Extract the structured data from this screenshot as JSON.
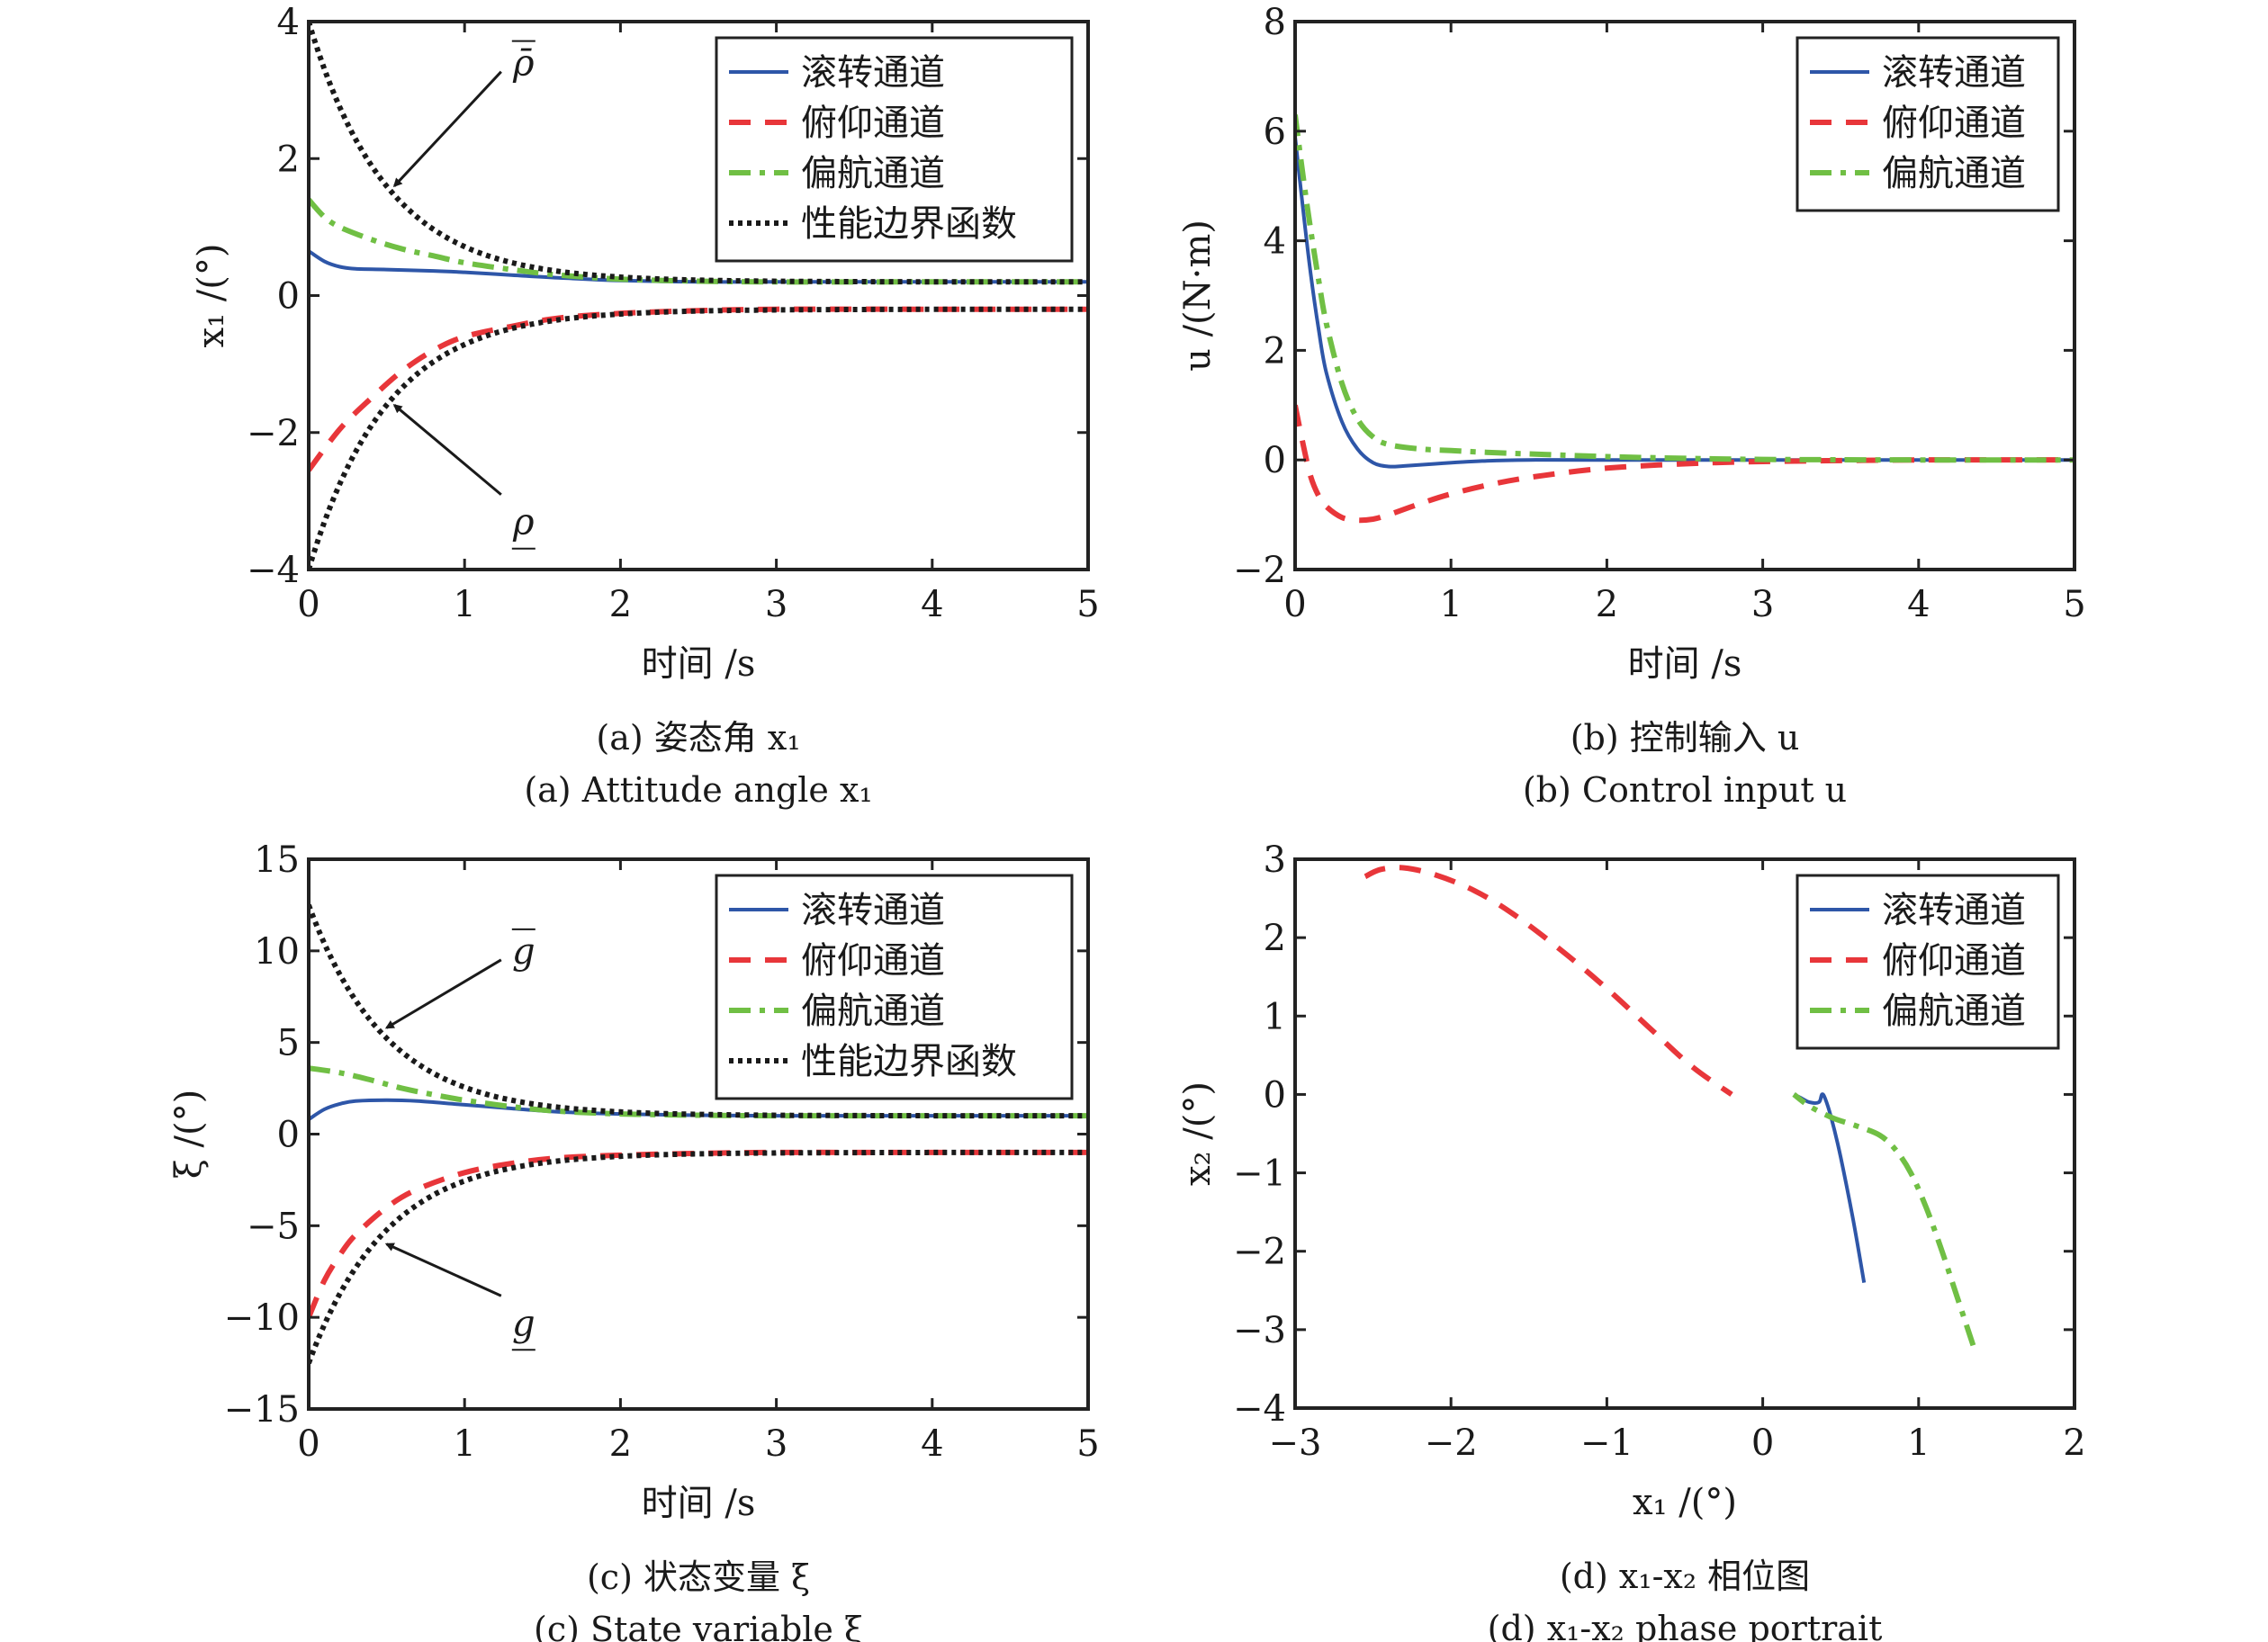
{
  "colors": {
    "roll": "#2e56a8",
    "pitch": "#e8363a",
    "yaw": "#70bf44",
    "bound": "#1a1a1a",
    "axis": "#222222"
  },
  "legend_labels": {
    "roll": "滚转通道",
    "pitch": "俯仰通道",
    "yaw": "偏航通道",
    "bound": "性能边界函数"
  },
  "chart_data": [
    {
      "id": "a",
      "type": "line",
      "xlabel": "时间 /s",
      "ylabel": "x₁ /(°)",
      "caption_cn": "(a) 姿态角 x₁",
      "caption_en": "(a) Attitude angle x₁",
      "xlim": [
        0,
        5
      ],
      "ylim": [
        -4,
        4
      ],
      "xticks": [
        0,
        1,
        2,
        3,
        4,
        5
      ],
      "yticks": [
        -4,
        -2,
        0,
        2,
        4
      ],
      "ytick_labels": [
        "−4",
        "−2",
        "0",
        "2",
        "4"
      ],
      "legend": "top-right",
      "legend_keys": [
        "roll",
        "pitch",
        "yaw",
        "bound"
      ],
      "annotations": [
        {
          "text": "ρ̄",
          "over": true,
          "text_at": [
            1.35,
            3.4
          ],
          "arrow_to": [
            0.55,
            1.6
          ]
        },
        {
          "text": "ρ",
          "under": true,
          "text_at": [
            1.35,
            -3.3
          ],
          "arrow_to": [
            0.55,
            -1.6
          ]
        }
      ],
      "series": [
        {
          "key": "roll",
          "x": [
            0,
            0.1,
            0.2,
            0.3,
            0.5,
            0.8,
            1.0,
            1.3,
            1.6,
            2.0,
            2.5,
            3,
            4,
            5
          ],
          "y": [
            0.65,
            0.5,
            0.42,
            0.39,
            0.38,
            0.36,
            0.34,
            0.3,
            0.26,
            0.22,
            0.2,
            0.2,
            0.2,
            0.2
          ]
        },
        {
          "key": "pitch",
          "x": [
            0,
            0.2,
            0.4,
            0.6,
            0.8,
            1.0,
            1.3,
            1.6,
            2.0,
            2.5,
            3,
            4,
            5
          ],
          "y": [
            -2.55,
            -1.95,
            -1.5,
            -1.1,
            -0.8,
            -0.6,
            -0.45,
            -0.33,
            -0.26,
            -0.22,
            -0.2,
            -0.2,
            -0.2
          ]
        },
        {
          "key": "yaw",
          "x": [
            0,
            0.1,
            0.2,
            0.4,
            0.6,
            0.8,
            1.0,
            1.3,
            1.6,
            2.0,
            2.5,
            3,
            4,
            5
          ],
          "y": [
            1.4,
            1.15,
            1.0,
            0.82,
            0.68,
            0.58,
            0.48,
            0.38,
            0.3,
            0.24,
            0.21,
            0.2,
            0.2,
            0.2
          ]
        },
        {
          "key": "bound",
          "formula": "exp",
          "y0": 4.0,
          "yinf": 0.2,
          "rate": 2.0,
          "label": "upper"
        },
        {
          "key": "bound",
          "formula": "exp",
          "y0": -4.0,
          "yinf": -0.2,
          "rate": 2.0,
          "label": "lower"
        }
      ]
    },
    {
      "id": "b",
      "type": "line",
      "xlabel": "时间 /s",
      "ylabel": "u /(N·m)",
      "caption_cn": "(b) 控制输入 u",
      "caption_en": "(b) Control input u",
      "xlim": [
        0,
        5
      ],
      "ylim": [
        -2,
        8
      ],
      "xticks": [
        0,
        1,
        2,
        3,
        4,
        5
      ],
      "yticks": [
        -2,
        0,
        2,
        4,
        6,
        8
      ],
      "ytick_labels": [
        "−2",
        "0",
        "2",
        "4",
        "6",
        "8"
      ],
      "legend": "top-right",
      "legend_keys": [
        "roll",
        "pitch",
        "yaw"
      ],
      "annotations": [],
      "series": [
        {
          "key": "roll",
          "x": [
            0,
            0.05,
            0.1,
            0.15,
            0.2,
            0.3,
            0.4,
            0.5,
            0.6,
            0.7,
            0.9,
            1.2,
            1.5,
            2.0,
            3,
            4,
            5
          ],
          "y": [
            5.9,
            4.6,
            3.4,
            2.4,
            1.6,
            0.7,
            0.2,
            -0.05,
            -0.12,
            -0.11,
            -0.07,
            -0.02,
            0.0,
            0.0,
            0.0,
            0.0,
            0.0
          ]
        },
        {
          "key": "pitch",
          "x": [
            0,
            0.05,
            0.1,
            0.15,
            0.2,
            0.3,
            0.4,
            0.5,
            0.6,
            0.8,
            1.0,
            1.3,
            1.6,
            2.0,
            2.5,
            3,
            4,
            5
          ],
          "y": [
            1.0,
            0.3,
            -0.3,
            -0.65,
            -0.85,
            -1.05,
            -1.1,
            -1.08,
            -1.0,
            -0.8,
            -0.62,
            -0.42,
            -0.28,
            -0.15,
            -0.07,
            -0.03,
            0.0,
            0.0
          ]
        },
        {
          "key": "yaw",
          "x": [
            0,
            0.05,
            0.1,
            0.15,
            0.2,
            0.3,
            0.4,
            0.5,
            0.6,
            0.8,
            1.0,
            1.3,
            1.6,
            2.0,
            2.5,
            3,
            4,
            5
          ],
          "y": [
            6.3,
            5.2,
            4.2,
            3.3,
            2.5,
            1.4,
            0.75,
            0.42,
            0.28,
            0.2,
            0.17,
            0.13,
            0.1,
            0.06,
            0.03,
            0.01,
            0.0,
            0.0
          ]
        }
      ]
    },
    {
      "id": "c",
      "type": "line",
      "xlabel": "时间 /s",
      "ylabel": "ξ /(°)",
      "caption_cn": "(c) 状态变量 ξ",
      "caption_en": "(c) State variable ξ",
      "xlim": [
        0,
        5
      ],
      "ylim": [
        -15,
        15
      ],
      "xticks": [
        0,
        1,
        2,
        3,
        4,
        5
      ],
      "yticks": [
        -15,
        -10,
        -5,
        0,
        5,
        10,
        15
      ],
      "ytick_labels": [
        "−15",
        "−10",
        "−5",
        "0",
        "5",
        "10",
        "15"
      ],
      "legend": "top-right",
      "legend_keys": [
        "roll",
        "pitch",
        "yaw",
        "bound"
      ],
      "annotations": [
        {
          "text": "g",
          "over": true,
          "text_at": [
            1.35,
            10.0
          ],
          "arrow_to": [
            0.5,
            5.8
          ]
        },
        {
          "text": "g",
          "under": true,
          "text_at": [
            1.35,
            -10.3
          ],
          "arrow_to": [
            0.5,
            -6.0
          ]
        }
      ],
      "series": [
        {
          "key": "roll",
          "x": [
            0,
            0.1,
            0.2,
            0.3,
            0.5,
            0.7,
            1.0,
            1.3,
            1.6,
            2.0,
            2.5,
            3,
            4,
            5
          ],
          "y": [
            0.8,
            1.35,
            1.65,
            1.8,
            1.85,
            1.8,
            1.6,
            1.4,
            1.22,
            1.1,
            1.03,
            1.0,
            1.0,
            1.0
          ]
        },
        {
          "key": "pitch",
          "x": [
            0,
            0.1,
            0.2,
            0.3,
            0.5,
            0.7,
            1.0,
            1.3,
            1.6,
            2.0,
            2.5,
            3,
            4,
            5
          ],
          "y": [
            -10.0,
            -8.0,
            -6.6,
            -5.5,
            -4.0,
            -3.0,
            -2.1,
            -1.6,
            -1.3,
            -1.15,
            -1.05,
            -1.0,
            -1.0,
            -1.0
          ]
        },
        {
          "key": "yaw",
          "x": [
            0,
            0.2,
            0.4,
            0.6,
            0.8,
            1.0,
            1.3,
            1.6,
            2.0,
            2.5,
            3,
            4,
            5
          ],
          "y": [
            3.6,
            3.35,
            2.95,
            2.5,
            2.15,
            1.85,
            1.5,
            1.25,
            1.1,
            1.03,
            1.0,
            1.0,
            1.0
          ]
        },
        {
          "key": "bound",
          "formula": "exp",
          "y0": 12.5,
          "yinf": 1.0,
          "rate": 2.0,
          "label": "upper"
        },
        {
          "key": "bound",
          "formula": "exp",
          "y0": -12.5,
          "yinf": -1.0,
          "rate": 2.0,
          "label": "lower"
        }
      ]
    },
    {
      "id": "d",
      "type": "line",
      "xlabel": "x₁ /(°)",
      "ylabel": "x₂ /(°)",
      "caption_cn": "(d) x₁-x₂ 相位图",
      "caption_en": "(d) x₁-x₂ phase portrait",
      "xlim": [
        -3,
        2
      ],
      "ylim": [
        -4,
        3
      ],
      "xticks": [
        -3,
        -2,
        -1,
        0,
        1,
        2
      ],
      "xtick_labels": [
        "−3",
        "−2",
        "−1",
        "0",
        "1",
        "2"
      ],
      "yticks": [
        -4,
        -3,
        -2,
        -1,
        0,
        1,
        2,
        3
      ],
      "ytick_labels": [
        "−4",
        "−3",
        "−2",
        "−1",
        "0",
        "1",
        "2",
        "3"
      ],
      "legend": "top-right",
      "legend_keys": [
        "roll",
        "pitch",
        "yaw"
      ],
      "annotations": [],
      "series": [
        {
          "key": "roll",
          "x": [
            0.65,
            0.58,
            0.5,
            0.44,
            0.4,
            0.38,
            0.36,
            0.3,
            0.25,
            0.2
          ],
          "y": [
            -2.4,
            -1.6,
            -0.8,
            -0.3,
            -0.05,
            0.0,
            -0.1,
            -0.1,
            -0.05,
            0.0
          ]
        },
        {
          "key": "pitch",
          "x": [
            -2.55,
            -2.45,
            -2.3,
            -2.1,
            -1.85,
            -1.6,
            -1.3,
            -1.0,
            -0.7,
            -0.45,
            -0.2
          ],
          "y": [
            2.78,
            2.87,
            2.89,
            2.8,
            2.6,
            2.3,
            1.85,
            1.35,
            0.8,
            0.35,
            0.0
          ]
        },
        {
          "key": "yaw",
          "x": [
            1.35,
            1.25,
            1.15,
            1.05,
            0.95,
            0.85,
            0.75,
            0.6,
            0.45,
            0.3,
            0.2
          ],
          "y": [
            -3.2,
            -2.6,
            -2.0,
            -1.45,
            -1.0,
            -0.7,
            -0.52,
            -0.4,
            -0.3,
            -0.15,
            0.0
          ]
        }
      ]
    }
  ]
}
